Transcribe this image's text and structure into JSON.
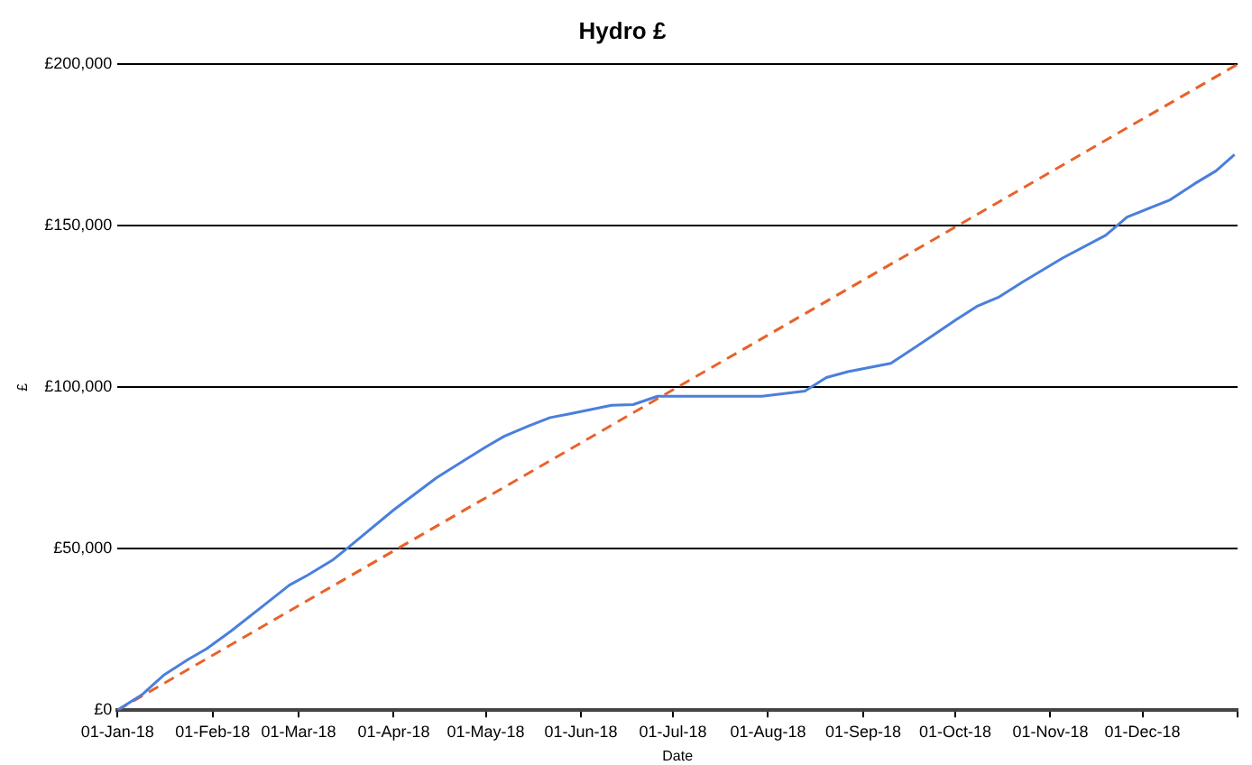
{
  "chart_data": {
    "type": "line",
    "title": "Hydro £",
    "xlabel": "Date",
    "ylabel": "£",
    "xlim": [
      "2018-01-01",
      "2019-01-01"
    ],
    "xticks": [
      {
        "value": "2018-01-01",
        "label": "01-Jan-18"
      },
      {
        "value": "2018-02-01",
        "label": "01-Feb-18"
      },
      {
        "value": "2018-03-01",
        "label": "01-Mar-18"
      },
      {
        "value": "2018-04-01",
        "label": "01-Apr-18"
      },
      {
        "value": "2018-05-01",
        "label": "01-May-18"
      },
      {
        "value": "2018-06-01",
        "label": "01-Jun-18"
      },
      {
        "value": "2018-07-01",
        "label": "01-Jul-18"
      },
      {
        "value": "2018-08-01",
        "label": "01-Aug-18"
      },
      {
        "value": "2018-09-01",
        "label": "01-Sep-18"
      },
      {
        "value": "2018-10-01",
        "label": "01-Oct-18"
      },
      {
        "value": "2018-11-01",
        "label": "01-Nov-18"
      },
      {
        "value": "2018-12-01",
        "label": "01-Dec-18"
      },
      {
        "value": "2019-01-01",
        "label": null
      }
    ],
    "ylim": [
      0,
      200000
    ],
    "yticks": [
      {
        "value": 0,
        "label": "£0"
      },
      {
        "value": 50000,
        "label": "£50,000"
      },
      {
        "value": 100000,
        "label": "£100,000"
      },
      {
        "value": 150000,
        "label": "£150,000"
      },
      {
        "value": 200000,
        "label": "£200,000"
      }
    ],
    "grid": "y",
    "legend": false,
    "marker": "none",
    "series": [
      {
        "color": "#4a7fdc",
        "line_style": "solid",
        "x": [
          "2018-01-01",
          "2018-01-09",
          "2018-01-16",
          "2018-01-24",
          "2018-01-30",
          "2018-02-07",
          "2018-02-18",
          "2018-02-26",
          "2018-03-04",
          "2018-03-12",
          "2018-03-18",
          "2018-04-01",
          "2018-04-15",
          "2018-05-01",
          "2018-05-07",
          "2018-05-15",
          "2018-05-22",
          "2018-05-28",
          "2018-06-11",
          "2018-06-18",
          "2018-06-26",
          "2018-07-30",
          "2018-08-13",
          "2018-08-20",
          "2018-08-27",
          "2018-09-10",
          "2018-09-22",
          "2018-10-01",
          "2018-10-08",
          "2018-10-15",
          "2018-10-23",
          "2018-11-05",
          "2018-11-19",
          "2018-11-26",
          "2018-12-10",
          "2018-12-18",
          "2018-12-25",
          "2018-12-31"
        ],
        "values": [
          0,
          4800,
          10800,
          15700,
          19000,
          24500,
          32700,
          38700,
          41800,
          46400,
          51000,
          62000,
          72000,
          81500,
          84800,
          88000,
          90600,
          91700,
          94400,
          94600,
          97200,
          97200,
          98800,
          103000,
          104800,
          107400,
          114900,
          120700,
          125000,
          127800,
          132600,
          140000,
          147000,
          152700,
          158000,
          163000,
          167000,
          172000
        ]
      },
      {
        "color": "#e8622a",
        "line_style": "dashed",
        "x": [
          "2018-01-01",
          "2019-01-01"
        ],
        "values": [
          0,
          200000
        ]
      }
    ]
  }
}
